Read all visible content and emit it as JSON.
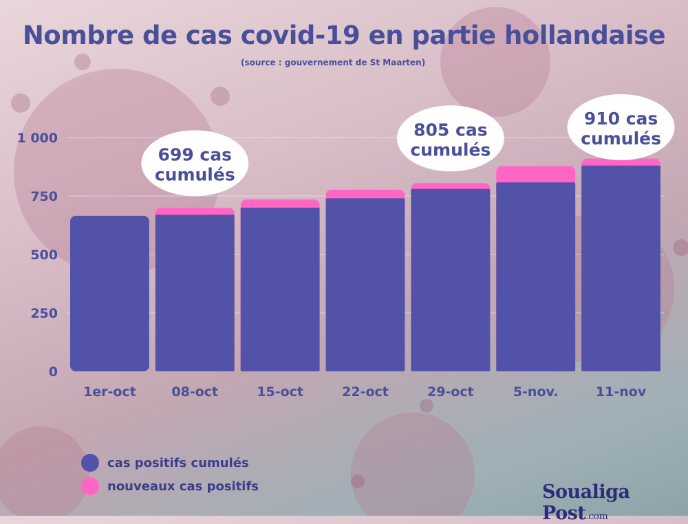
{
  "title": "Nombre de cas covid-19 en partie hollandaise",
  "subtitle": "(source : gouvernement de St Maarten)",
  "colors": {
    "cumulative": "#5252a8",
    "new": "#ff66c4",
    "text": "#4a4f9a",
    "bubble": "#ffffff"
  },
  "chart_data": {
    "type": "bar",
    "stacked": true,
    "categories": [
      "1er-oct",
      "08-oct",
      "15-oct",
      "22-oct",
      "29-oct",
      "5-nov.",
      "11-nov"
    ],
    "series": [
      {
        "name": "cas positifs cumulés",
        "values": [
          665,
          670,
          700,
          740,
          780,
          808,
          880
        ]
      },
      {
        "name": "nouveaux cas positifs",
        "values": [
          0,
          29,
          35,
          37,
          25,
          70,
          30
        ]
      }
    ],
    "yticks": [
      0,
      250,
      500,
      750,
      1000
    ],
    "ytick_labels": [
      "0",
      "250",
      "500",
      "750",
      "1 000"
    ],
    "ylim": [
      0,
      1000
    ],
    "grid": true,
    "legend": "bottom-left",
    "annotations": [
      {
        "category": "08-oct",
        "line1": "699 cas",
        "line2": "cumulés"
      },
      {
        "category": "29-oct",
        "line1": "805 cas",
        "line2": "cumulés"
      },
      {
        "category": "11-nov",
        "line1": "910 cas",
        "line2": "cumulés"
      }
    ]
  },
  "legend": [
    {
      "label": "cas positifs cumulés",
      "color": "#5252a8"
    },
    {
      "label": "nouveaux cas positifs",
      "color": "#ff66c4"
    }
  ],
  "logo": {
    "name": "Soualiga Post",
    "tld": ".com"
  }
}
